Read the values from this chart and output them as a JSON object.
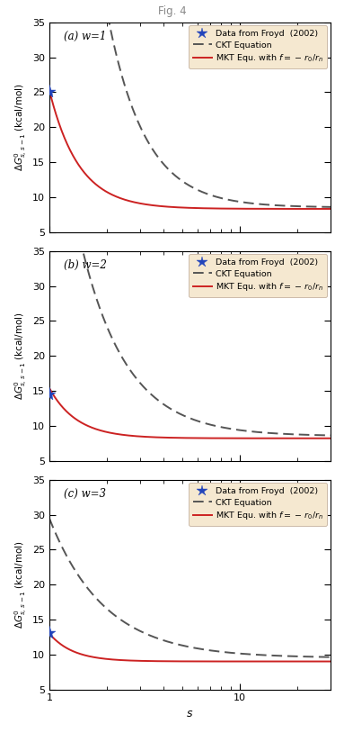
{
  "panels": [
    {
      "label": "(a) w=1",
      "data_point_x": 1,
      "data_point_y": 25.0,
      "ckt_asymptote": 8.5,
      "ckt_A": 130.0,
      "ckt_alpha": 2.2,
      "mkt_asymptote": 8.3,
      "mkt_A": 17.0,
      "mkt_alpha": 2.8
    },
    {
      "label": "(b) w=2",
      "data_point_x": 1,
      "data_point_y": 14.5,
      "ckt_asymptote": 8.5,
      "ckt_A": 55.0,
      "ckt_alpha": 1.8,
      "mkt_asymptote": 8.2,
      "mkt_A": 7.2,
      "mkt_alpha": 3.0
    },
    {
      "label": "(c) w=3",
      "data_point_x": 1,
      "data_point_y": 13.0,
      "ckt_asymptote": 9.5,
      "ckt_A": 20.0,
      "ckt_alpha": 1.5,
      "mkt_asymptote": 9.0,
      "mkt_A": 4.0,
      "mkt_alpha": 3.5
    }
  ],
  "ylim": [
    5,
    35
  ],
  "yticks": [
    5,
    10,
    15,
    20,
    25,
    30,
    35
  ],
  "xlim_low": 1,
  "xlim_high": 30,
  "xticks_major": [
    1,
    10
  ],
  "xlabel": "s",
  "ckt_color": "#555555",
  "mkt_color": "#cc2222",
  "data_color": "#2244bb",
  "legend_bg": "#f5e8d0",
  "legend_edge": "#ccbbaa",
  "background_color": "#ffffff",
  "title": "Fig. 4",
  "title_color": "#888888"
}
